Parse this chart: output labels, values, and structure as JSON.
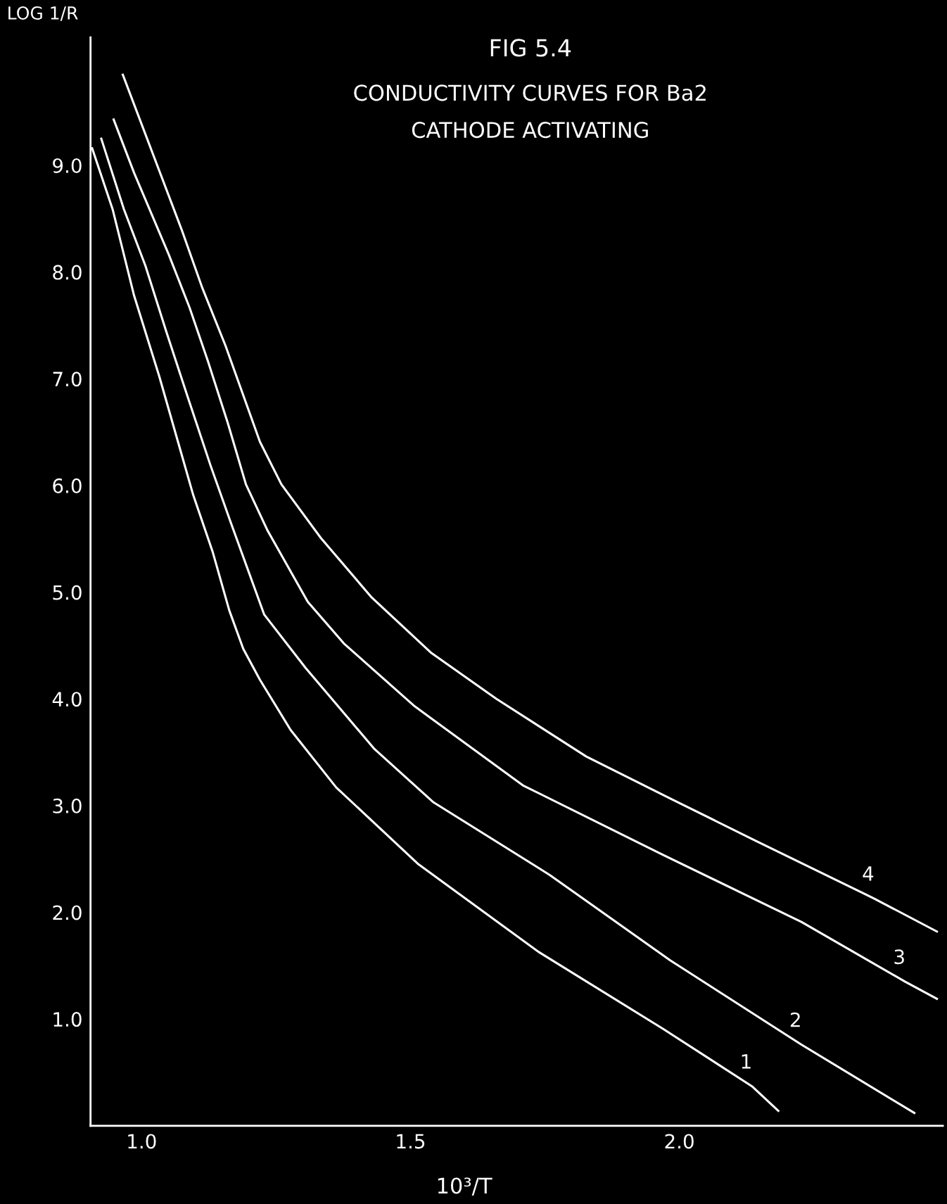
{
  "chart_data": {
    "type": "line",
    "title": "FIG 5.4",
    "subtitle": "CONDUCTIVITY CURVES FOR Ba2\nCATHODE ACTIVATING",
    "xlabel": "10³/T",
    "ylabel": "LOG 1/R",
    "xlim": [
      0.905,
      2.49
    ],
    "ylim": [
      0,
      10.2
    ],
    "xticks": [
      {
        "value": 1.0,
        "label": "1.0"
      },
      {
        "value": 1.5,
        "label": "1.5"
      },
      {
        "value": 2.0,
        "label": "2.0"
      }
    ],
    "yticks": [
      {
        "value": 1,
        "label": "1.0"
      },
      {
        "value": 2,
        "label": "2.0"
      },
      {
        "value": 3,
        "label": "3.0"
      },
      {
        "value": 4,
        "label": "4.0"
      },
      {
        "value": 5,
        "label": "5.0"
      },
      {
        "value": 6,
        "label": "6.0"
      },
      {
        "value": 7,
        "label": "7.0"
      },
      {
        "value": 8,
        "label": "8.0"
      },
      {
        "value": 9,
        "label": "9.0"
      }
    ],
    "grid": false,
    "line_style": "solid",
    "series": [
      {
        "name": "1",
        "color": "#ffffff",
        "x": [
          0.908,
          0.946,
          0.986,
          1.033,
          1.096,
          1.132,
          1.163,
          1.189,
          1.22,
          1.277,
          1.362,
          1.515,
          1.738,
          1.969,
          2.135,
          2.184
        ],
        "values": [
          9.16,
          8.59,
          7.78,
          7.02,
          5.91,
          5.38,
          4.83,
          4.47,
          4.18,
          3.71,
          3.17,
          2.45,
          1.63,
          0.91,
          0.37,
          0.14
        ]
      },
      {
        "name": "2",
        "color": "#ffffff",
        "x": [
          0.925,
          0.967,
          1.007,
          1.046,
          1.085,
          1.128,
          1.166,
          1.228,
          1.305,
          1.433,
          1.543,
          1.759,
          1.983,
          2.227,
          2.437
        ],
        "values": [
          9.25,
          8.59,
          8.06,
          7.44,
          6.84,
          6.19,
          5.65,
          4.79,
          4.29,
          3.53,
          3.03,
          2.35,
          1.55,
          0.76,
          0.12
        ]
      },
      {
        "name": "3",
        "color": "#ffffff",
        "x": [
          0.948,
          0.986,
          1.05,
          1.089,
          1.123,
          1.16,
          1.194,
          1.234,
          1.309,
          1.376,
          1.508,
          1.709,
          1.969,
          2.227,
          2.42,
          2.479
        ],
        "values": [
          9.43,
          8.93,
          8.17,
          7.67,
          7.17,
          6.59,
          6.01,
          5.58,
          4.91,
          4.52,
          3.93,
          3.19,
          2.54,
          1.91,
          1.35,
          1.19
        ]
      },
      {
        "name": "4",
        "color": "#ffffff",
        "x": [
          0.965,
          1.075,
          1.113,
          1.156,
          1.22,
          1.26,
          1.333,
          1.428,
          1.539,
          1.66,
          1.827,
          1.986,
          2.142,
          2.362,
          2.479
        ],
        "values": [
          9.85,
          8.39,
          7.85,
          7.31,
          6.41,
          6.01,
          5.51,
          4.95,
          4.43,
          4.0,
          3.46,
          3.06,
          2.67,
          2.13,
          1.82
        ]
      }
    ]
  }
}
